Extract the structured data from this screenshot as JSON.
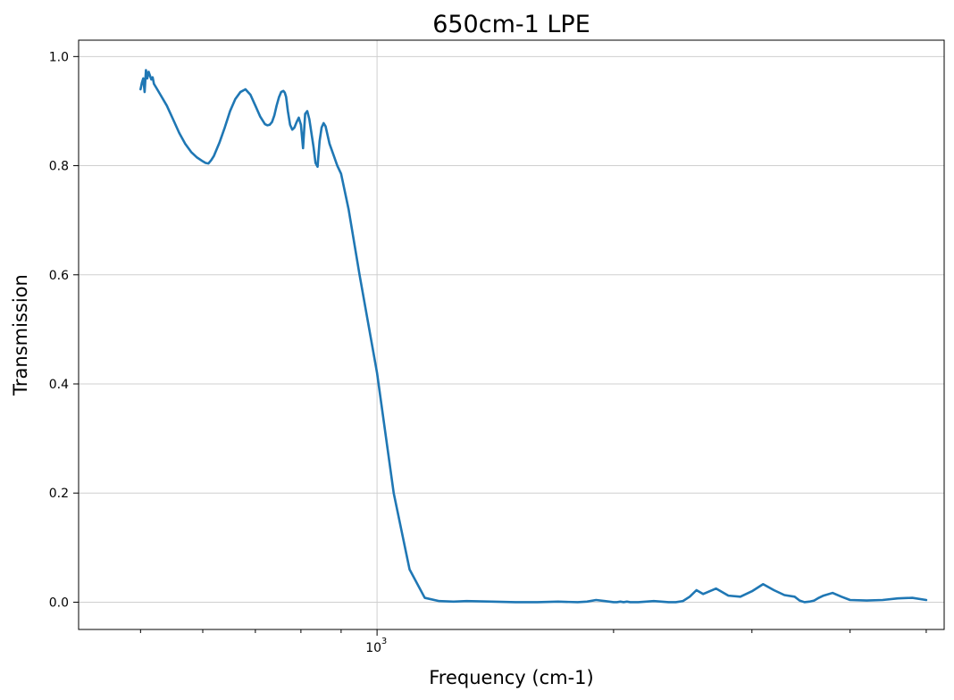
{
  "chart_data": {
    "type": "line",
    "title": "650cm-1 LPE",
    "xlabel": "Frequency (cm-1)",
    "ylabel": "Transmission",
    "x_scale": "log",
    "xlim": [
      417,
      5270
    ],
    "ylim": [
      -0.05,
      1.03
    ],
    "grid": true,
    "yticks": [
      0.0,
      0.2,
      0.4,
      0.6,
      0.8,
      1.0
    ],
    "ytick_labels": [
      "0.0",
      "0.2",
      "0.4",
      "0.6",
      "0.8",
      "1.0"
    ],
    "xtick_major": [
      1000
    ],
    "xtick_major_labels": [
      {
        "base": "10",
        "exp": "3"
      }
    ],
    "xtick_minor": [
      500,
      600,
      700,
      800,
      900,
      2000,
      3000,
      4000,
      5000
    ],
    "line_color": "#1f77b4",
    "series": [
      {
        "x": [
          500,
          502,
          504,
          506,
          508,
          510,
          512,
          514,
          516,
          518,
          520,
          525,
          530,
          540,
          550,
          560,
          570,
          580,
          590,
          600,
          605,
          610,
          615,
          620,
          630,
          640,
          650,
          660,
          670,
          680,
          690,
          700,
          710,
          720,
          725,
          730,
          735,
          740,
          745,
          750,
          755,
          760,
          763,
          766,
          770,
          775,
          780,
          785,
          790,
          795,
          800,
          805,
          810,
          815,
          820,
          825,
          830,
          835,
          840,
          845,
          850,
          855,
          860,
          870,
          880,
          890,
          900,
          920,
          950,
          1000,
          1050,
          1100,
          1150,
          1200,
          1250,
          1300,
          1400,
          1500,
          1600,
          1700,
          1800,
          1850,
          1900,
          1950,
          2000,
          2020,
          2040,
          2060,
          2080,
          2100,
          2150,
          2200,
          2250,
          2300,
          2350,
          2400,
          2450,
          2500,
          2550,
          2600,
          2700,
          2800,
          2900,
          3000,
          3100,
          3200,
          3300,
          3400,
          3450,
          3500,
          3550,
          3600,
          3650,
          3700,
          3800,
          3900,
          4000,
          4200,
          4400,
          4600,
          4800,
          5000
        ],
        "y": [
          0.94,
          0.952,
          0.96,
          0.935,
          0.975,
          0.96,
          0.972,
          0.965,
          0.958,
          0.962,
          0.95,
          0.94,
          0.93,
          0.91,
          0.885,
          0.86,
          0.84,
          0.825,
          0.815,
          0.808,
          0.805,
          0.804,
          0.81,
          0.818,
          0.842,
          0.87,
          0.9,
          0.922,
          0.935,
          0.94,
          0.93,
          0.91,
          0.89,
          0.876,
          0.874,
          0.875,
          0.88,
          0.892,
          0.91,
          0.925,
          0.935,
          0.937,
          0.934,
          0.926,
          0.9,
          0.875,
          0.866,
          0.87,
          0.88,
          0.888,
          0.875,
          0.832,
          0.895,
          0.9,
          0.885,
          0.86,
          0.835,
          0.805,
          0.798,
          0.845,
          0.87,
          0.878,
          0.872,
          0.84,
          0.82,
          0.8,
          0.785,
          0.72,
          0.6,
          0.42,
          0.2,
          0.06,
          0.008,
          0.002,
          0.001,
          0.002,
          0.001,
          0.0,
          0.0,
          0.001,
          0.0,
          0.001,
          0.004,
          0.002,
          0.0,
          0.0,
          0.001,
          0.0,
          0.001,
          0.0,
          0.0,
          0.001,
          0.002,
          0.001,
          0.0,
          0.0,
          0.002,
          0.01,
          0.022,
          0.015,
          0.025,
          0.012,
          0.01,
          0.02,
          0.033,
          0.022,
          0.013,
          0.01,
          0.003,
          0.0,
          0.001,
          0.003,
          0.008,
          0.012,
          0.017,
          0.01,
          0.004,
          0.003,
          0.004,
          0.007,
          0.008,
          0.004
        ]
      }
    ]
  }
}
